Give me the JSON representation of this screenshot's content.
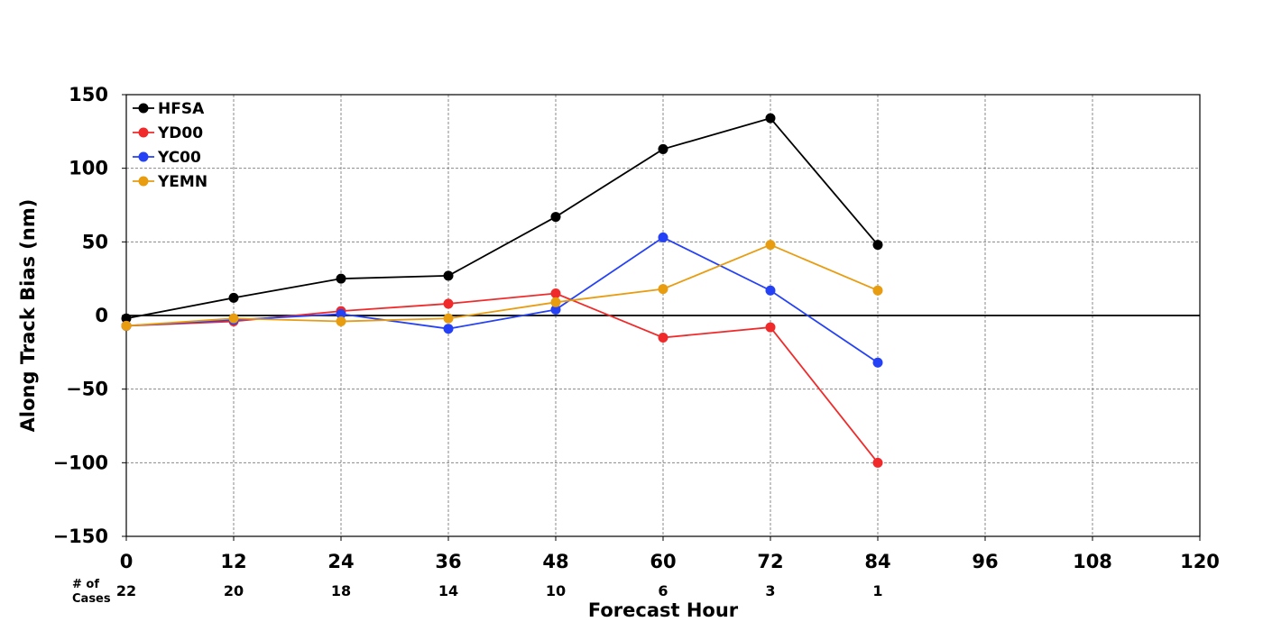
{
  "chart_data": {
    "type": "line",
    "xlabel": "Forecast Hour",
    "ylabel": "Along Track Bias (nm)",
    "x": [
      0,
      12,
      24,
      36,
      48,
      60,
      72,
      84
    ],
    "xlim": [
      0,
      120
    ],
    "ylim": [
      -150,
      150
    ],
    "x_ticks": [
      0,
      12,
      24,
      36,
      48,
      60,
      72,
      84,
      96,
      108,
      120
    ],
    "y_ticks": [
      150,
      100,
      50,
      0,
      -50,
      -100,
      -150
    ],
    "x_tick_labels": [
      "0",
      "12",
      "24",
      "36",
      "48",
      "60",
      "72",
      "84",
      "96",
      "108",
      "120"
    ],
    "y_tick_labels": [
      "150",
      "100",
      "50",
      "0",
      "−50",
      "−100",
      "−150"
    ],
    "grid": true,
    "legend_position": "top-left",
    "cases_label_line1": "# of",
    "cases_label_line2": "Cases",
    "cases": [
      "22",
      "20",
      "18",
      "14",
      "10",
      "6",
      "3",
      "1"
    ],
    "series": [
      {
        "name": "HFSA",
        "color": "#000000",
        "values": [
          -2,
          12,
          25,
          27,
          67,
          113,
          134,
          48
        ]
      },
      {
        "name": "YD00",
        "color": "#f02a2a",
        "values": [
          -7,
          -4,
          3,
          8,
          15,
          -15,
          -8,
          -100
        ]
      },
      {
        "name": "YC00",
        "color": "#2541f5",
        "values": [
          -7,
          -3,
          1,
          -9,
          4,
          53,
          17,
          -32
        ]
      },
      {
        "name": "YEMN",
        "color": "#e89c10",
        "values": [
          -7,
          -2,
          -4,
          -2,
          9,
          18,
          48,
          17
        ]
      }
    ]
  }
}
